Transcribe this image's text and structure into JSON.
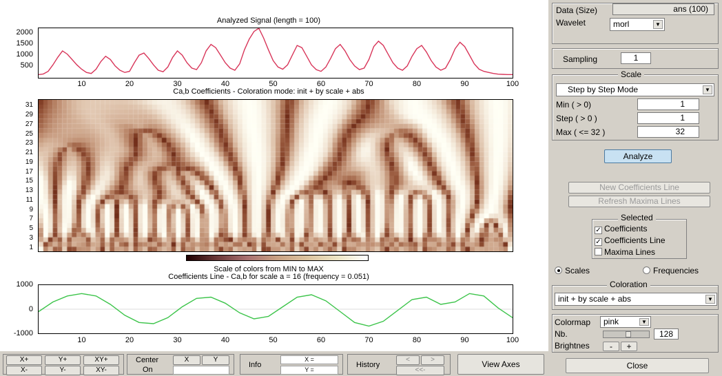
{
  "figure": {
    "signal_title": "Analyzed Signal  (length = 100)",
    "coef_title": "Ca,b Coefficients - Coloration mode: init + by scale + abs",
    "colorbar_caption": "Scale of colors from MIN to MAX",
    "line_title": "Coefficients Line - Ca,b for scale a = 16  (frequency =  0.051)"
  },
  "chart_data": [
    {
      "type": "line",
      "title": "Analyzed Signal  (length = 100)",
      "xlim": [
        1,
        100
      ],
      "ylim": [
        0,
        2300
      ],
      "xticks": [
        "10",
        "20",
        "30",
        "40",
        "50",
        "60",
        "70",
        "80",
        "90",
        "100"
      ],
      "yticks": [
        "2000",
        "1500",
        "1000",
        "500"
      ],
      "color": "#d8365a",
      "x": [
        1,
        2,
        3,
        4,
        5,
        6,
        7,
        8,
        9,
        10,
        11,
        12,
        13,
        14,
        15,
        16,
        17,
        18,
        19,
        20,
        21,
        22,
        23,
        24,
        25,
        26,
        27,
        28,
        29,
        30,
        31,
        32,
        33,
        34,
        35,
        36,
        37,
        38,
        39,
        40,
        41,
        42,
        43,
        44,
        45,
        46,
        47,
        48,
        49,
        50,
        51,
        52,
        53,
        54,
        55,
        56,
        57,
        58,
        59,
        60,
        61,
        62,
        63,
        64,
        65,
        66,
        67,
        68,
        69,
        70,
        71,
        72,
        73,
        74,
        75,
        76,
        77,
        78,
        79,
        80,
        81,
        82,
        83,
        84,
        85,
        86,
        87,
        88,
        89,
        90,
        91,
        92,
        93,
        94,
        95,
        96,
        97,
        98,
        99,
        100
      ],
      "y": [
        150,
        180,
        300,
        600,
        950,
        1250,
        1100,
        850,
        600,
        400,
        250,
        200,
        400,
        750,
        1000,
        850,
        550,
        350,
        250,
        300,
        700,
        1050,
        1150,
        900,
        600,
        350,
        280,
        500,
        950,
        1250,
        1050,
        700,
        450,
        380,
        700,
        1250,
        1550,
        1400,
        1050,
        700,
        450,
        350,
        650,
        1300,
        1800,
        2150,
        2300,
        1850,
        1300,
        800,
        500,
        400,
        600,
        1050,
        1500,
        1400,
        1000,
        600,
        380,
        300,
        500,
        900,
        1350,
        1550,
        1250,
        850,
        550,
        380,
        450,
        850,
        1450,
        1700,
        1500,
        1100,
        700,
        450,
        350,
        550,
        1000,
        1350,
        1500,
        1200,
        800,
        500,
        350,
        450,
        850,
        1350,
        1650,
        1450,
        1050,
        650,
        400,
        300,
        250,
        200,
        170,
        160,
        150,
        150
      ]
    },
    {
      "type": "heatmap",
      "title": "Ca,b Coefficients - Coloration mode: init + by scale + abs",
      "xlim": [
        1,
        100
      ],
      "ylim": [
        1,
        32
      ],
      "yticks": [
        "31",
        "29",
        "27",
        "25",
        "23",
        "21",
        "19",
        "17",
        "15",
        "13",
        "11",
        "9",
        "7",
        "5",
        "3",
        "1"
      ],
      "colormap": "pink"
    },
    {
      "type": "line",
      "title": "Coefficients Line - Ca,b for scale a = 16  (frequency =  0.051)",
      "xlim": [
        1,
        100
      ],
      "ylim": [
        -1000,
        1000
      ],
      "xticks": [
        "10",
        "20",
        "30",
        "40",
        "50",
        "60",
        "70",
        "80",
        "90",
        "100"
      ],
      "yticks": [
        "1000",
        "0",
        "-1000"
      ],
      "color": "#3cc44a",
      "x": [
        1,
        4,
        7,
        10,
        13,
        16,
        19,
        22,
        25,
        28,
        31,
        34,
        37,
        40,
        43,
        46,
        49,
        52,
        55,
        58,
        61,
        64,
        67,
        70,
        73,
        76,
        79,
        82,
        85,
        88,
        91,
        94,
        97,
        100
      ],
      "y": [
        -100,
        300,
        550,
        650,
        550,
        200,
        -250,
        -550,
        -600,
        -350,
        100,
        450,
        500,
        250,
        -150,
        -400,
        -300,
        100,
        500,
        600,
        350,
        -100,
        -550,
        -700,
        -500,
        -50,
        400,
        500,
        200,
        300,
        650,
        550,
        50,
        -350
      ]
    }
  ],
  "toolbar": {
    "xplus": "X+",
    "yplus": "Y+",
    "xyplus": "XY+",
    "xminus": "X-",
    "yminus": "Y-",
    "xyminus": "XY-",
    "center_label": "Center",
    "on_label": "On",
    "center_x": "X",
    "center_y": "Y",
    "info_label": "Info",
    "info_x": "X =",
    "info_y": "Y =",
    "history_label": "History",
    "hist_back": "<",
    "hist_fwd": ">",
    "hist_first": "<<-",
    "view_axes": "View Axes"
  },
  "panel": {
    "data_label": "Data  (Size)",
    "data_value": "ans  (100)",
    "wavelet_label": "Wavelet",
    "wavelet_value": "morl",
    "sampling_label": "Sampling",
    "sampling_value": "1",
    "scale_legend": "Scale",
    "scale_mode": "Step by Step Mode",
    "min_label": "Min  ( > 0)",
    "min_value": "1",
    "step_label": "Step ( > 0 )",
    "step_value": "1",
    "max_label": "Max  ( <= 32 )",
    "max_value": "32",
    "analyze": "Analyze",
    "new_coef_line": "New Coefficients Line",
    "refresh_maxima": "Refresh Maxima Lines",
    "selected_legend": "Selected",
    "chk_coefficients": "Coefficients",
    "chk_coef_line": "Coefficients Line",
    "chk_maxima": "Maxima Lines",
    "radio_scales": "Scales",
    "radio_freq": "Frequencies",
    "coloration_legend": "Coloration",
    "coloration_value": "init + by scale + abs",
    "colormap_label": "Colormap",
    "colormap_value": "pink",
    "nb_label": "Nb.",
    "nb_value": "128",
    "brightness_label": "Brightnes",
    "brightness_minus": "-",
    "brightness_plus": "+",
    "close": "Close"
  }
}
